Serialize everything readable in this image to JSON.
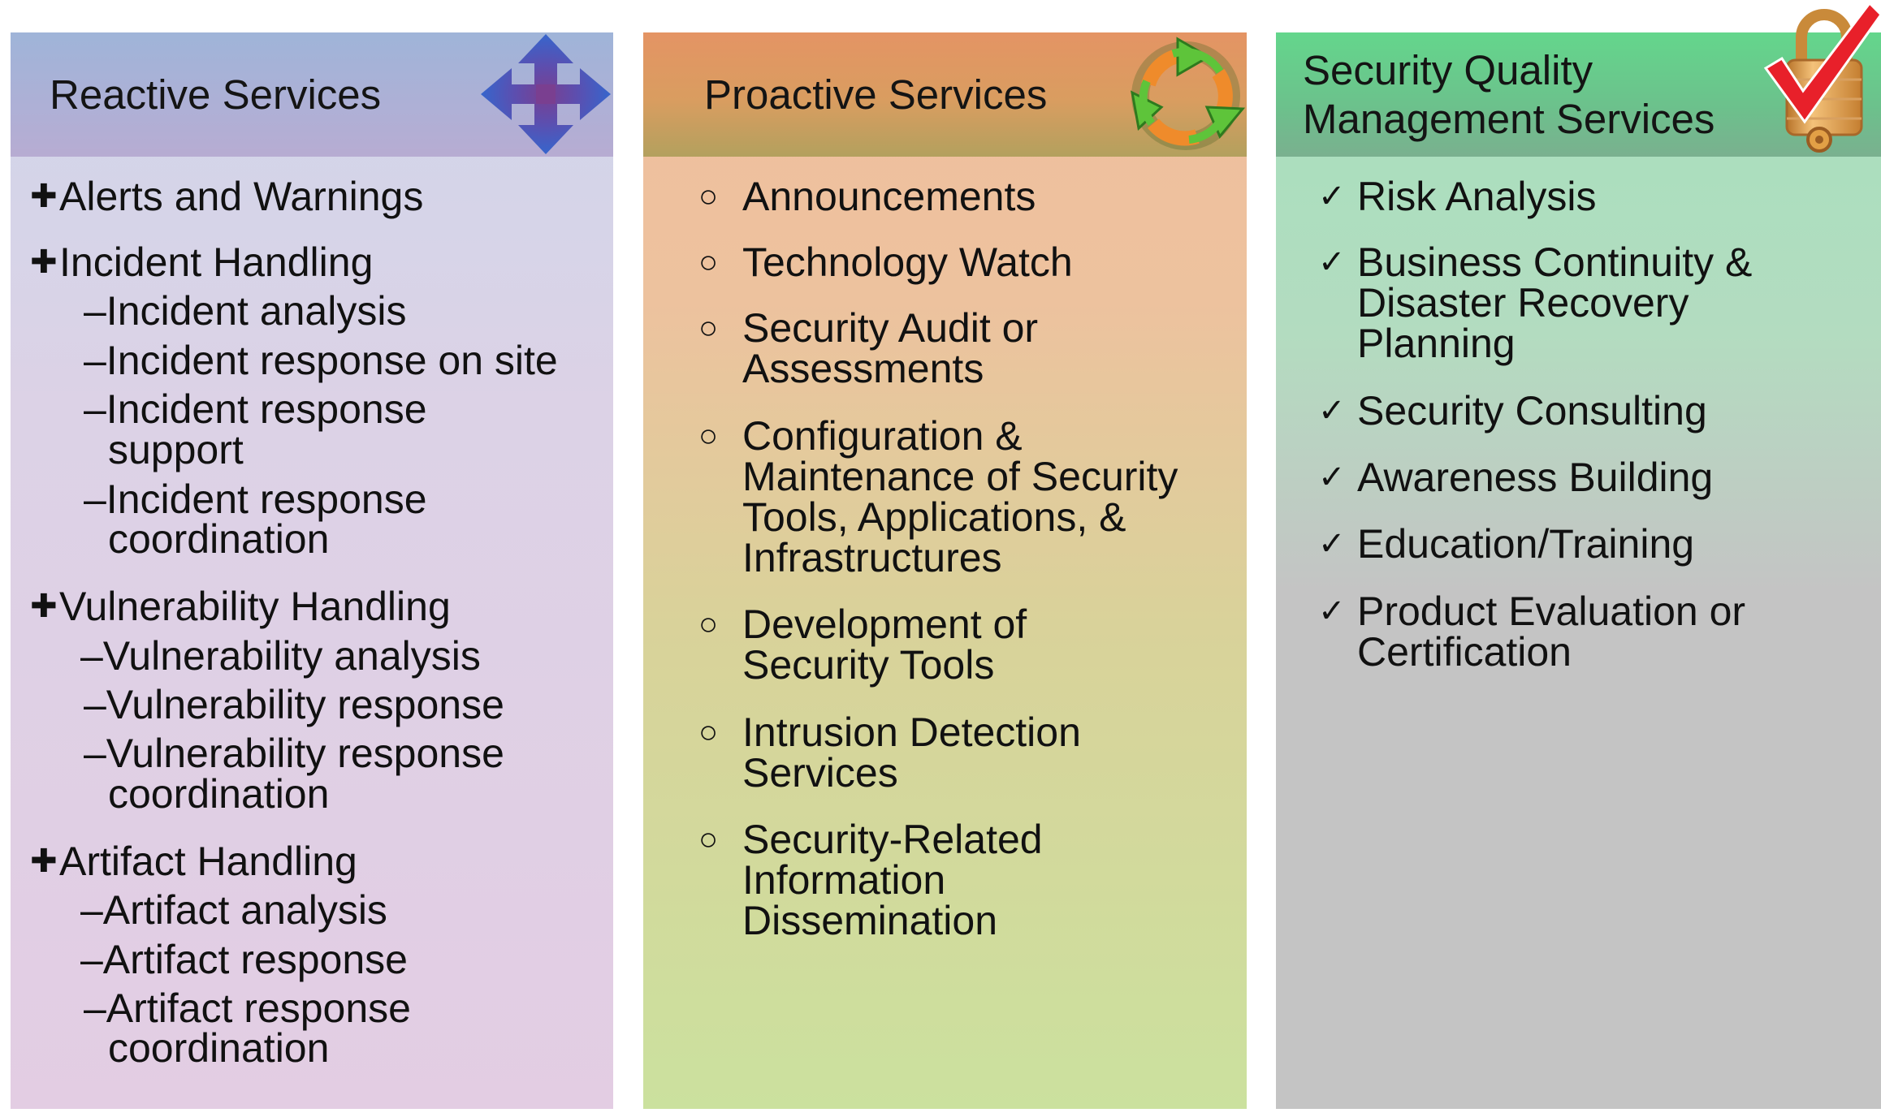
{
  "columns": {
    "reactive": {
      "title": "Reactive Services",
      "icon": "four-way-arrows-icon",
      "bullet": "✚",
      "groups": [
        {
          "label": "Alerts and Warnings",
          "sub": []
        },
        {
          "label": "Incident Handling",
          "sub": [
            {
              "line1": "–Incident analysis",
              "line2": ""
            },
            {
              "line1": "–Incident response on site",
              "line2": ""
            },
            {
              "line1": "–Incident response",
              "line2": "support"
            },
            {
              "line1": "–Incident response",
              "line2": "coordination"
            }
          ]
        },
        {
          "label": "Vulnerability Handling",
          "sub": [
            {
              "line1": "–Vulnerability analysis",
              "line2": ""
            },
            {
              "line1": "–Vulnerability response",
              "line2": ""
            },
            {
              "line1": "–Vulnerability response",
              "line2": "coordination"
            }
          ]
        },
        {
          "label": "Artifact Handling",
          "sub": [
            {
              "line1": "–Artifact analysis",
              "line2": ""
            },
            {
              "line1": "–Artifact response",
              "line2": ""
            },
            {
              "line1": "–Artifact response",
              "line2": "coordination"
            }
          ]
        }
      ]
    },
    "proactive": {
      "title": "Proactive Services",
      "icon": "recycle-arrows-icon",
      "bullet": "○",
      "items": [
        [
          "Announcements"
        ],
        [
          "Technology Watch"
        ],
        [
          "Security Audit or",
          "Assessments"
        ],
        [
          "Configuration &",
          "Maintenance of Security",
          "Tools, Applications, &",
          "Infrastructures"
        ],
        [
          "Development of",
          "Security Tools"
        ],
        [
          "Intrusion Detection",
          "Services"
        ],
        [
          "Security-Related",
          "Information",
          "Dissemination"
        ]
      ]
    },
    "quality": {
      "title_line1": "Security Quality",
      "title_line2": "Management Services",
      "icon": "padlock-checkmark-icon",
      "bullet": "✓",
      "items": [
        [
          "Risk Analysis"
        ],
        [
          "Business Continuity &",
          "Disaster Recovery",
          "Planning"
        ],
        [
          "Security Consulting"
        ],
        [
          "Awareness Building"
        ],
        [
          "Education/Training"
        ],
        [
          "Product Evaluation or",
          "Certification"
        ]
      ]
    }
  },
  "colors": {
    "check_red": "#e8202a",
    "arrow_blue": "#3d63c8",
    "arrow_purple": "#7a3f90",
    "recycle_green": "#5ec43a",
    "recycle_orange": "#ef8b2b",
    "lock_gold": "#e2a046"
  }
}
